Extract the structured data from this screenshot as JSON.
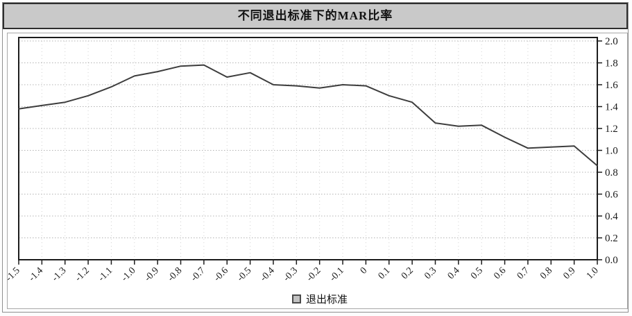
{
  "title": "不同退出标准下的MAR比率",
  "legend": {
    "label": "退出标准",
    "marker_color": "#c2c2c2"
  },
  "colors": {
    "titlebar_bg": "#c9c9c9",
    "line": "#3d3d3d",
    "grid": "#b3b3b3",
    "axis": "#1c1c1c"
  },
  "chart_data": {
    "type": "line",
    "title": "不同退出标准下的MAR比率",
    "categories": [
      "-1.5",
      "-1.4",
      "-1.3",
      "-1.2",
      "-1.1",
      "-1.0",
      "-0.9",
      "-0.8",
      "-0.7",
      "-0.6",
      "-0.5",
      "-0.4",
      "-0.3",
      "-0.2",
      "-0.1",
      "0",
      "0.1",
      "0.2",
      "0.3",
      "0.4",
      "0.5",
      "0.6",
      "0.7",
      "0.8",
      "0.9",
      "1.0"
    ],
    "values": [
      1.38,
      1.41,
      1.44,
      1.5,
      1.58,
      1.68,
      1.72,
      1.77,
      1.78,
      1.67,
      1.71,
      1.6,
      1.59,
      1.57,
      1.6,
      1.59,
      1.5,
      1.44,
      1.25,
      1.22,
      1.23,
      1.12,
      1.02,
      1.03,
      1.04,
      0.86
    ],
    "series": [
      {
        "name": "退出标准",
        "values": [
          1.38,
          1.41,
          1.44,
          1.5,
          1.58,
          1.68,
          1.72,
          1.77,
          1.78,
          1.67,
          1.71,
          1.6,
          1.59,
          1.57,
          1.6,
          1.59,
          1.5,
          1.44,
          1.25,
          1.22,
          1.23,
          1.12,
          1.02,
          1.03,
          1.04,
          0.86
        ]
      }
    ],
    "xlabel": "",
    "ylabel": "",
    "ylim": [
      0.0,
      2.0
    ],
    "y_tick_labels": [
      "2.0",
      "1.8",
      "1.6",
      "1.4",
      "1.2",
      "1.0",
      "0.8",
      "0.6",
      "0.4",
      "0.2",
      "0.0"
    ],
    "y_axis_side": "right",
    "x_tick_rotation": -45,
    "grid": true,
    "legend_entries": [
      "退出标准"
    ],
    "legend_position": "bottom"
  }
}
